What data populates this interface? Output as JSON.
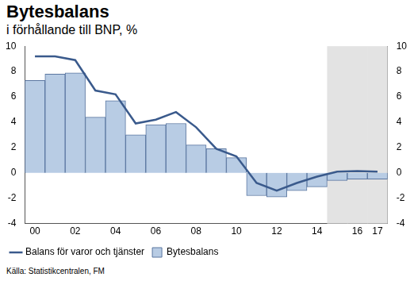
{
  "chart_data": {
    "type": "bar",
    "title": "Bytesbalans",
    "subtitle": "i förhållande till BNP, %",
    "source": "Källa: Statistikcentralen, FM",
    "categories": [
      "00",
      null,
      "02",
      null,
      "04",
      null,
      "06",
      null,
      "08",
      null,
      "10",
      null,
      "12",
      null,
      "14",
      null,
      "16",
      "17"
    ],
    "forecast": [
      false,
      false,
      false,
      false,
      false,
      false,
      false,
      false,
      false,
      false,
      false,
      false,
      false,
      false,
      false,
      true,
      true,
      true
    ],
    "series": [
      {
        "name": "Bytesbalans",
        "type": "bar",
        "color": "#b8cce4",
        "values": [
          7.3,
          7.8,
          7.9,
          4.4,
          5.7,
          3.0,
          3.8,
          3.9,
          2.2,
          1.9,
          1.2,
          -1.8,
          -1.9,
          -1.4,
          -1.1,
          -0.6,
          -0.5,
          -0.5
        ]
      },
      {
        "name": "Balans för varor och tjänster",
        "type": "line",
        "color": "#3a5a8c",
        "values": [
          9.2,
          9.2,
          8.9,
          6.5,
          6.2,
          3.9,
          4.2,
          4.8,
          3.6,
          1.9,
          1.3,
          -0.8,
          -1.4,
          -0.8,
          -0.3,
          0.1,
          0.15,
          0.1
        ]
      }
    ],
    "ylim": [
      -4,
      10
    ],
    "yticks": [
      -4,
      -2,
      0,
      2,
      4,
      6,
      8,
      10
    ],
    "y2lim": [
      -4,
      10
    ],
    "y2ticks": [
      -4,
      -2,
      0,
      2,
      4,
      6,
      8,
      10
    ],
    "grid": false,
    "legend": "bottom-left"
  }
}
